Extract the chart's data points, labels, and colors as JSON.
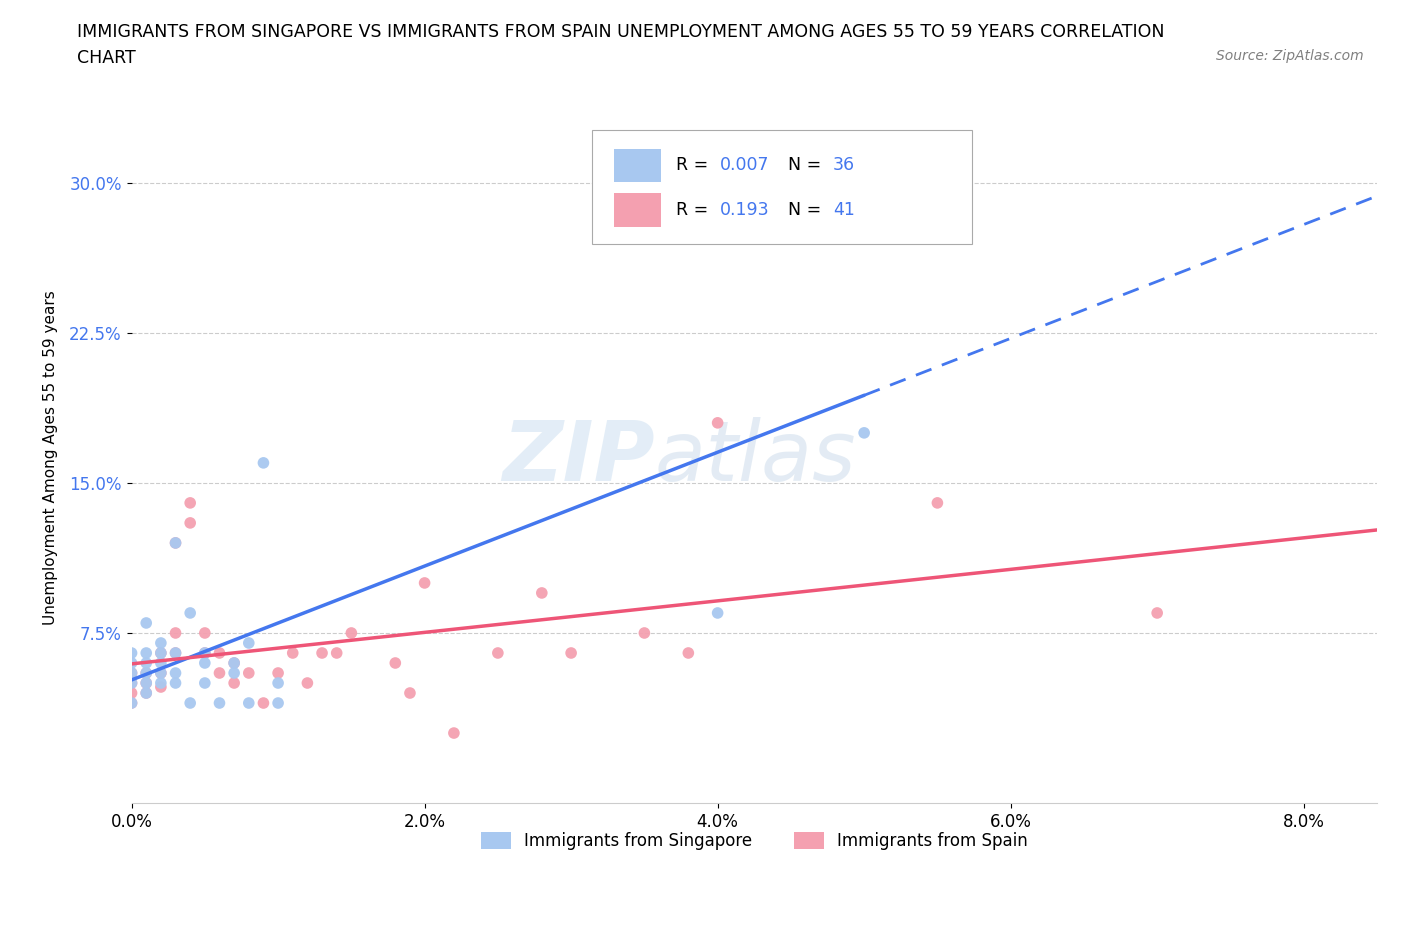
{
  "title_line1": "IMMIGRANTS FROM SINGAPORE VS IMMIGRANTS FROM SPAIN UNEMPLOYMENT AMONG AGES 55 TO 59 YEARS CORRELATION",
  "title_line2": "CHART",
  "source": "Source: ZipAtlas.com",
  "ylabel": "Unemployment Among Ages 55 to 59 years",
  "xlim": [
    0.0,
    0.085
  ],
  "ylim": [
    -0.01,
    0.335
  ],
  "xtick_labels": [
    "0.0%",
    "2.0%",
    "4.0%",
    "6.0%",
    "8.0%"
  ],
  "xtick_values": [
    0.0,
    0.02,
    0.04,
    0.06,
    0.08
  ],
  "ytick_labels": [
    "7.5%",
    "15.0%",
    "22.5%",
    "30.0%"
  ],
  "ytick_values": [
    0.075,
    0.15,
    0.225,
    0.3
  ],
  "watermark_zip": "ZIP",
  "watermark_atlas": "atlas",
  "singapore_color": "#a8c8f0",
  "spain_color": "#f4a0b0",
  "singapore_R": "0.007",
  "singapore_N": "36",
  "spain_R": "0.193",
  "spain_N": "41",
  "legend_label_singapore": "Immigrants from Singapore",
  "legend_label_spain": "Immigrants from Spain",
  "blue_line_color": "#4477ee",
  "pink_line_color": "#ee5577",
  "grid_color": "#cccccc",
  "background_color": "#ffffff",
  "value_color": "#4477ee",
  "singapore_x": [
    0.0,
    0.0,
    0.0,
    0.0,
    0.0,
    0.001,
    0.001,
    0.001,
    0.001,
    0.001,
    0.001,
    0.002,
    0.002,
    0.002,
    0.002,
    0.002,
    0.003,
    0.003,
    0.003,
    0.003,
    0.004,
    0.004,
    0.005,
    0.005,
    0.005,
    0.006,
    0.007,
    0.007,
    0.008,
    0.008,
    0.009,
    0.01,
    0.01,
    0.04,
    0.047,
    0.05
  ],
  "singapore_y": [
    0.04,
    0.05,
    0.055,
    0.06,
    0.065,
    0.045,
    0.05,
    0.055,
    0.06,
    0.065,
    0.08,
    0.05,
    0.055,
    0.06,
    0.065,
    0.07,
    0.05,
    0.055,
    0.065,
    0.12,
    0.04,
    0.085,
    0.05,
    0.06,
    0.065,
    0.04,
    0.055,
    0.06,
    0.04,
    0.07,
    0.16,
    0.04,
    0.05,
    0.085,
    0.285,
    0.175
  ],
  "spain_x": [
    0.0,
    0.0,
    0.0,
    0.0,
    0.001,
    0.001,
    0.001,
    0.002,
    0.002,
    0.002,
    0.003,
    0.003,
    0.003,
    0.004,
    0.004,
    0.005,
    0.005,
    0.006,
    0.006,
    0.007,
    0.007,
    0.008,
    0.009,
    0.01,
    0.011,
    0.012,
    0.013,
    0.014,
    0.015,
    0.018,
    0.019,
    0.02,
    0.022,
    0.025,
    0.028,
    0.03,
    0.035,
    0.038,
    0.04,
    0.055,
    0.07
  ],
  "spain_y": [
    0.04,
    0.045,
    0.05,
    0.055,
    0.045,
    0.05,
    0.055,
    0.048,
    0.055,
    0.065,
    0.065,
    0.075,
    0.12,
    0.14,
    0.13,
    0.065,
    0.075,
    0.055,
    0.065,
    0.05,
    0.06,
    0.055,
    0.04,
    0.055,
    0.065,
    0.05,
    0.065,
    0.065,
    0.075,
    0.06,
    0.045,
    0.1,
    0.025,
    0.065,
    0.095,
    0.065,
    0.075,
    0.065,
    0.18,
    0.14,
    0.085
  ]
}
